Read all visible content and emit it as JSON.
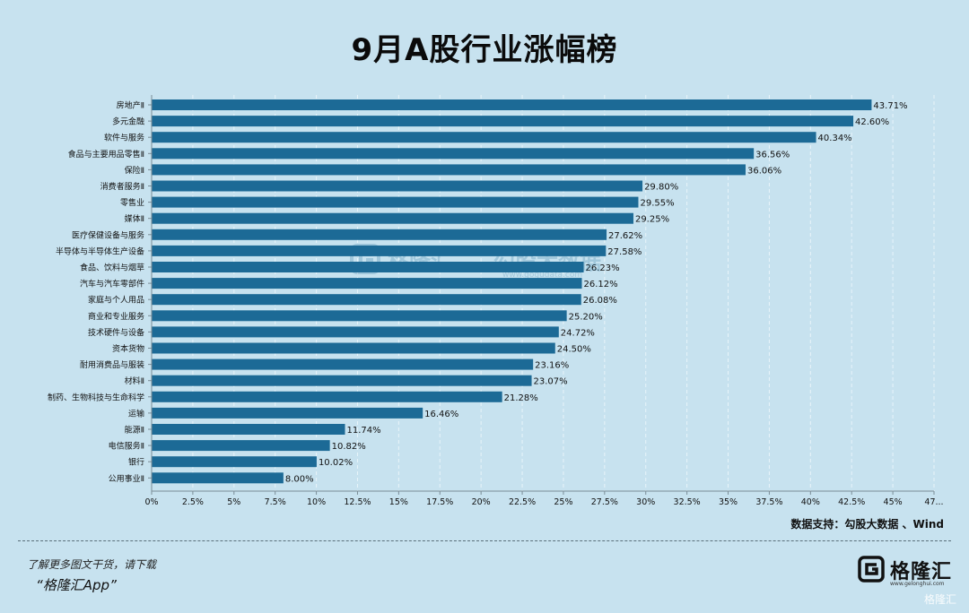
{
  "title": "9月A股行业涨幅榜",
  "source": "数据支持：勾股大数据 、Wind",
  "promo": {
    "line1": "了解更多图文干货，请下载",
    "line2": "“格隆汇App”"
  },
  "logo": {
    "text": "格隆汇",
    "url": "www.gelonghui.com"
  },
  "watermark": {
    "brand": "格隆汇",
    "sub": "勾股大数据",
    "url": "www.gogudata.com"
  },
  "corner_watermark": "格隆汇",
  "colors": {
    "background": "#c7e2ef",
    "bar": "#1c6a96",
    "grid": "#e8f4fa",
    "axis": "#7a8c96"
  },
  "chart_data": {
    "type": "bar",
    "orientation": "horizontal",
    "categories": [
      "房地产Ⅱ",
      "多元金融",
      "软件与服务",
      "食品与主要用品零售Ⅱ",
      "保险Ⅱ",
      "消费者服务Ⅱ",
      "零售业",
      "媒体Ⅱ",
      "医疗保健设备与服务",
      "半导体与半导体生产设备",
      "食品、饮料与烟草",
      "汽车与汽车零部件",
      "家庭与个人用品",
      "商业和专业服务",
      "技术硬件与设备",
      "资本货物",
      "耐用消费品与服装",
      "材料Ⅱ",
      "制药、生物科技与生命科学",
      "运输",
      "能源Ⅱ",
      "电信服务Ⅱ",
      "银行",
      "公用事业Ⅱ"
    ],
    "values": [
      43.71,
      42.6,
      40.34,
      36.56,
      36.06,
      29.8,
      29.55,
      29.25,
      27.62,
      27.58,
      26.23,
      26.12,
      26.08,
      25.2,
      24.72,
      24.5,
      23.16,
      23.07,
      21.28,
      16.46,
      11.74,
      10.82,
      10.02,
      8.0
    ],
    "value_labels": [
      "43.71%",
      "42.60%",
      "40.34%",
      "36.56%",
      "36.06%",
      "29.80%",
      "29.55%",
      "29.25%",
      "27.62%",
      "27.58%",
      "26.23%",
      "26.12%",
      "26.08%",
      "25.20%",
      "24.72%",
      "24.50%",
      "23.16%",
      "23.07%",
      "21.28%",
      "16.46%",
      "11.74%",
      "10.82%",
      "10.02%",
      "8.00%"
    ],
    "xlim": [
      0,
      47.5
    ],
    "xticks": [
      0,
      2.5,
      5,
      7.5,
      10,
      12.5,
      15,
      17.5,
      20,
      22.5,
      25,
      27.5,
      30,
      32.5,
      35,
      37.5,
      40,
      42.5,
      45,
      47.5
    ],
    "xtick_labels": [
      "0%",
      "2.5%",
      "5%",
      "7.5%",
      "10%",
      "12.5%",
      "15%",
      "17.5%",
      "20%",
      "22.5%",
      "25%",
      "27.5%",
      "30%",
      "32.5%",
      "35%",
      "37.5%",
      "40%",
      "42.5%",
      "45%",
      "47..."
    ],
    "title": "9月A股行业涨幅榜",
    "xlabel": "",
    "ylabel": "",
    "grid": true
  }
}
